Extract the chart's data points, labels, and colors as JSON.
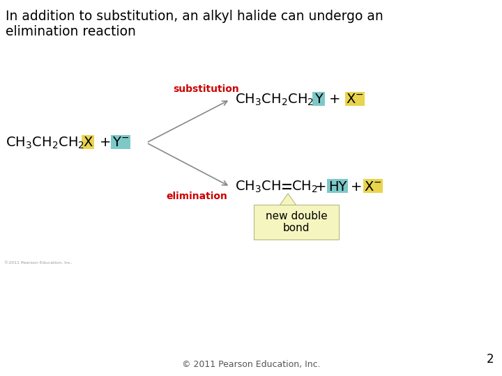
{
  "title_line1": "In addition to substitution, an alkyl halide can undergo an",
  "title_line2": "elimination reaction",
  "bg_color": "#ffffff",
  "title_color": "#000000",
  "title_fontsize": 13.5,
  "formula_fontsize": 14,
  "label_fontsize": 10,
  "reactant_x_bg": "#e8d44d",
  "reagent_bg": "#7ec8c8",
  "subst_label": "substitution",
  "subst_color": "#cc0000",
  "subst_y_bg": "#7ec8c8",
  "subst_x_bg": "#e8d44d",
  "elim_label": "elimination",
  "elim_color": "#cc0000",
  "elim_hy_bg": "#7ec8c8",
  "elim_x_bg": "#e8d44d",
  "new_double_bond_text": "new double\nbond",
  "new_double_bond_bg": "#f5f5c0",
  "footer": "© 2011 Pearson Education, Inc.",
  "footer_color": "#555555",
  "page_num": "2",
  "small_copyright": "©2011 Pearson Education, Inc."
}
